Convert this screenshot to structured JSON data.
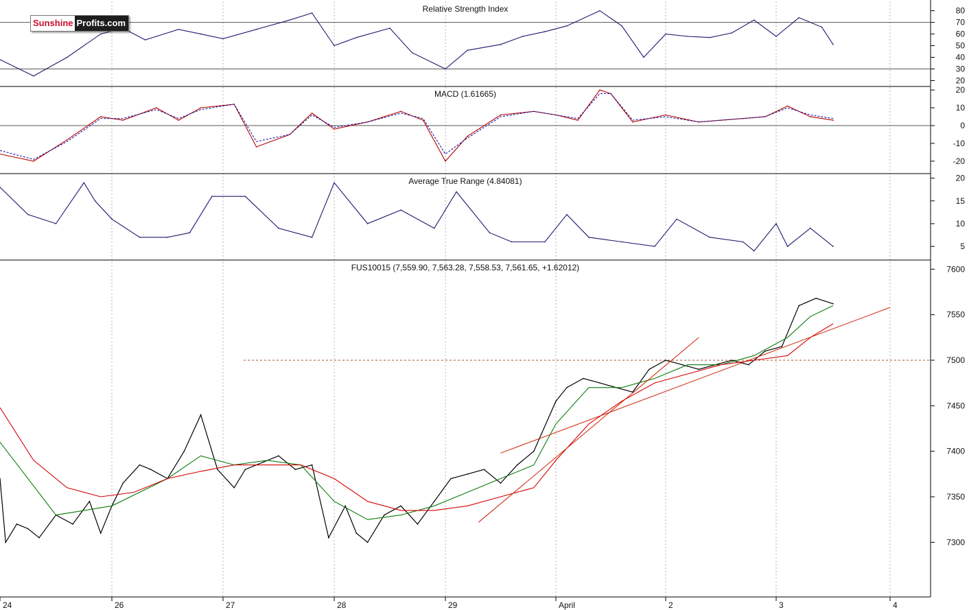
{
  "logo": {
    "part1": "Sunshine",
    "part2": "Profits.com"
  },
  "colors": {
    "price": "#000000",
    "rsi": "#1a1a6e",
    "macd": "#b30000",
    "signal": "#1a1aa0",
    "atr": "#1a1a6e",
    "ma_short": "#0a7a0a",
    "ma_long": "#d40000",
    "trendline": "#cc2200",
    "resistance": "#a0522d",
    "grid": "#b0b0b0"
  },
  "x_labels": [
    "24",
    "26",
    "27",
    "28",
    "29",
    "April",
    "2",
    "3",
    "4"
  ],
  "chart_data": [
    {
      "panel": "rsi",
      "type": "line",
      "title": "Relative Strength Index",
      "ylim": [
        15,
        88
      ],
      "yticks": [
        20,
        30,
        40,
        50,
        60,
        70,
        80
      ],
      "reference_lines": [
        30,
        70
      ],
      "series": [
        {
          "x": [
            0,
            0.3,
            0.6,
            0.9,
            1.1,
            1.3,
            1.6,
            1.8,
            2.0,
            2.3,
            2.6,
            2.8,
            3.0,
            3.2,
            3.5,
            3.7,
            4.0,
            4.2,
            4.5,
            4.7,
            4.9,
            5.1,
            5.4,
            5.6,
            5.8,
            6.0,
            6.2,
            6.4,
            6.6,
            6.8,
            7.0,
            7.2,
            7.4,
            7.5
          ],
          "values": [
            38,
            24,
            40,
            60,
            65,
            55,
            64,
            60,
            56,
            64,
            72,
            78,
            50,
            57,
            65,
            44,
            30,
            46,
            51,
            58,
            62,
            67,
            80,
            67,
            40,
            60,
            58,
            57,
            61,
            72,
            58,
            74,
            66,
            51
          ]
        }
      ]
    },
    {
      "panel": "macd",
      "type": "line",
      "title": "MACD (1.61665)",
      "ylim": [
        -27,
        22
      ],
      "yticks": [
        -20,
        -10,
        0,
        10,
        20
      ],
      "series": [
        {
          "style": "solid",
          "x": [
            0,
            0.3,
            0.6,
            0.9,
            1.1,
            1.4,
            1.6,
            1.8,
            2.1,
            2.3,
            2.6,
            2.8,
            3.0,
            3.3,
            3.6,
            3.8,
            4.0,
            4.2,
            4.5,
            4.8,
            5.0,
            5.2,
            5.4,
            5.5,
            5.7,
            6.0,
            6.3,
            6.5,
            6.7,
            6.9,
            7.1,
            7.3,
            7.5
          ],
          "values": [
            -16,
            -20,
            -8,
            5,
            3,
            10,
            3,
            10,
            12,
            -12,
            -5,
            7,
            -2,
            2,
            8,
            3,
            -20,
            -6,
            6,
            8,
            6,
            3,
            20,
            18,
            2,
            6,
            2,
            3,
            4,
            5,
            11,
            5,
            3
          ]
        },
        {
          "style": "dashed",
          "x": [
            0,
            0.3,
            0.6,
            0.9,
            1.1,
            1.4,
            1.6,
            1.8,
            2.1,
            2.3,
            2.6,
            2.8,
            3.0,
            3.3,
            3.6,
            3.8,
            4.0,
            4.2,
            4.5,
            4.8,
            5.0,
            5.2,
            5.4,
            5.5,
            5.7,
            6.0,
            6.3,
            6.5,
            6.7,
            6.9,
            7.1,
            7.3,
            7.5
          ],
          "values": [
            -14,
            -19,
            -9,
            4,
            4,
            9,
            4,
            9,
            12,
            -9,
            -5,
            6,
            -1,
            2,
            7,
            4,
            -16,
            -7,
            5,
            8,
            6,
            4,
            18,
            18,
            3,
            5,
            2,
            3,
            4,
            5,
            10,
            6,
            4
          ]
        }
      ]
    },
    {
      "panel": "atr",
      "type": "line",
      "title": "Average True Range (4.84081)",
      "ylim": [
        2,
        21
      ],
      "yticks": [
        5,
        10,
        15,
        20
      ],
      "series": [
        {
          "x": [
            0,
            0.25,
            0.5,
            0.75,
            0.85,
            1.0,
            1.25,
            1.5,
            1.7,
            1.9,
            2.2,
            2.5,
            2.8,
            3.0,
            3.3,
            3.6,
            3.9,
            4.1,
            4.4,
            4.6,
            4.9,
            5.1,
            5.3,
            5.6,
            5.9,
            6.1,
            6.4,
            6.7,
            6.8,
            7.0,
            7.1,
            7.3,
            7.5
          ],
          "values": [
            18,
            12,
            10,
            19,
            15,
            11,
            7,
            7,
            8,
            16,
            16,
            9,
            7,
            19,
            10,
            13,
            9,
            17,
            8,
            6,
            6,
            12,
            7,
            6,
            5,
            11,
            7,
            6,
            4,
            10,
            5,
            9,
            5
          ]
        }
      ]
    },
    {
      "panel": "price",
      "type": "line",
      "title": "FUS10015 (7,559.90, 7,563.28, 7,558.53, 7,561.65, +1.62012)",
      "ylim": [
        7240,
        7610
      ],
      "yticks": [
        7300,
        7350,
        7400,
        7450,
        7500,
        7550,
        7600
      ],
      "resistance_level": 7500,
      "series": [
        {
          "name": "",
          "x": [
            0,
            0.05,
            0.15,
            0.25,
            0.35,
            0.5,
            0.65,
            0.8,
            0.9,
            1.0,
            1.1,
            1.25,
            1.35,
            1.5,
            1.65,
            1.8,
            1.95,
            2.1,
            2.2,
            2.3,
            2.5,
            2.65,
            2.8,
            2.95,
            3.1,
            3.2,
            3.3,
            3.45,
            3.6,
            3.75,
            3.9,
            4.05,
            4.2,
            4.35,
            4.5,
            4.65,
            4.8,
            5.0,
            5.1,
            5.25,
            5.4,
            5.55,
            5.7,
            5.85,
            6.0,
            6.15,
            6.3,
            6.45,
            6.6,
            6.75,
            6.9,
            7.05,
            7.2,
            7.35,
            7.5
          ],
          "values": [
            7370,
            7300,
            7320,
            7315,
            7305,
            7330,
            7320,
            7345,
            7310,
            7340,
            7365,
            7385,
            7380,
            7370,
            7400,
            7440,
            7380,
            7360,
            7380,
            7385,
            7395,
            7380,
            7385,
            7305,
            7340,
            7310,
            7300,
            7330,
            7340,
            7320,
            7345,
            7370,
            7375,
            7380,
            7365,
            7385,
            7400,
            7455,
            7470,
            7480,
            7475,
            7470,
            7465,
            7490,
            7500,
            7495,
            7490,
            7495,
            7500,
            7495,
            7510,
            7515,
            7560,
            7568,
            7562
          ]
        },
        {
          "name": "",
          "x": [
            0,
            0.5,
            1.0,
            1.5,
            1.8,
            2.1,
            2.4,
            2.7,
            3.0,
            3.3,
            3.6,
            3.9,
            4.2,
            4.5,
            4.8,
            5.0,
            5.3,
            5.6,
            5.9,
            6.2,
            6.5,
            6.8,
            7.1,
            7.3,
            7.5
          ],
          "values": [
            7410,
            7330,
            7340,
            7370,
            7395,
            7385,
            7390,
            7385,
            7345,
            7325,
            7330,
            7340,
            7355,
            7370,
            7385,
            7430,
            7470,
            7470,
            7480,
            7495,
            7495,
            7505,
            7525,
            7548,
            7560
          ]
        },
        {
          "name": "",
          "x": [
            0,
            0.3,
            0.6,
            0.9,
            1.2,
            1.5,
            1.8,
            2.1,
            2.4,
            2.7,
            3.0,
            3.3,
            3.6,
            3.9,
            4.2,
            4.5,
            4.8,
            5.0,
            5.3,
            5.6,
            5.9,
            6.2,
            6.5,
            6.8,
            7.1,
            7.3,
            7.5
          ],
          "values": [
            7448,
            7390,
            7360,
            7350,
            7355,
            7370,
            7378,
            7385,
            7385,
            7385,
            7370,
            7345,
            7335,
            7335,
            7340,
            7350,
            7360,
            7390,
            7430,
            7455,
            7475,
            7485,
            7495,
            7500,
            7505,
            7525,
            7540
          ]
        }
      ]
    }
  ]
}
